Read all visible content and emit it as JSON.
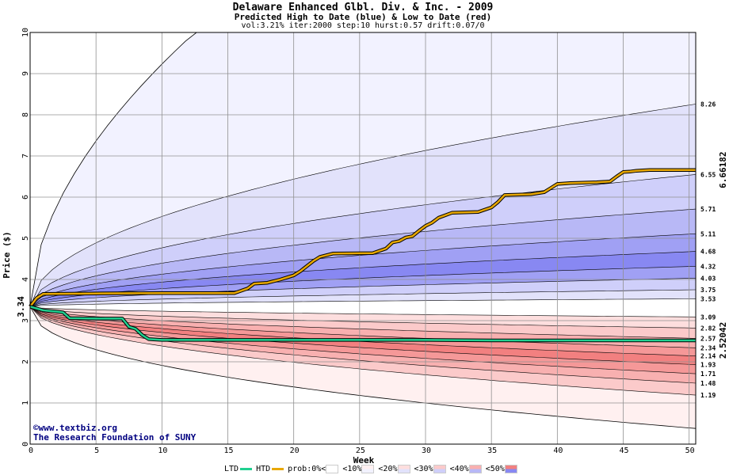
{
  "header": {
    "title": "Delaware Enhanced Glbl. Div. & Inc. - 2009",
    "subtitle": "Predicted High to Date (blue) &  Low to Date (red)",
    "params": "vol:3.21% iter:2000 step:10 hurst:0.57 drift:0.07/0"
  },
  "watermark": {
    "line1": "©www.textbiz.org",
    "line2": "The Research Foundation of SUNY"
  },
  "legend": {
    "ltd": "LTD",
    "htd": "HTD",
    "prob0": "prob:0%",
    "p10": "<10%",
    "p20": "<20%",
    "p30": "<30%",
    "p40": "<40%",
    "p50": "<50%",
    "less": "<"
  },
  "colors": {
    "htd": "#e8a800",
    "ltd": "#20d090",
    "start_label": "#007040",
    "end_htd_label": "#a07000",
    "end_ltd_label": "#009070",
    "blue_bands": [
      "#f2f2ff",
      "#e2e2fb",
      "#cfcffa",
      "#b8b8f6",
      "#a0a0f4",
      "#8888f2"
    ],
    "red_bands": [
      "#fff0f0",
      "#fddede",
      "#fbcaca",
      "#f8b0b0",
      "#f59898",
      "#f28080"
    ]
  },
  "chart_data": {
    "type": "line",
    "xlabel": "Week",
    "ylabel": "Price ($)",
    "xlim": [
      0,
      50.5
    ],
    "ylim": [
      0,
      10
    ],
    "xticks": [
      0,
      5,
      10,
      15,
      20,
      25,
      30,
      35,
      40,
      45,
      50
    ],
    "yticks": [
      0,
      1,
      2,
      3,
      4,
      5,
      6,
      7,
      8,
      9,
      10
    ],
    "grid": true,
    "start_price": 3.34,
    "start_label": "3.34",
    "high_quantiles_end": [
      8.26,
      6.55,
      5.71,
      5.11,
      4.68,
      4.32,
      4.03,
      3.75,
      3.53
    ],
    "low_quantiles_end": [
      3.09,
      2.82,
      2.57,
      2.34,
      2.14,
      1.93,
      1.71,
      1.48,
      1.19
    ],
    "right_labels": [
      "8.26",
      "6.55",
      "5.71",
      "5.11",
      "4.68",
      "4.32",
      "4.03",
      "3.75",
      "3.53",
      "3.09",
      "2.82",
      "2.57",
      "2.34",
      "2.14",
      "1.93",
      "1.71",
      "1.48",
      "1.19"
    ],
    "outer_high_end": 10.0,
    "outer_low_end": 0.38,
    "series": [
      {
        "name": "HTD",
        "x": [
          0,
          0.5,
          1,
          5,
          10,
          15.5,
          16.5,
          17,
          18,
          19,
          20,
          20.5,
          21.5,
          22,
          23,
          26,
          27,
          27.5,
          28,
          28.5,
          29,
          29.5,
          30,
          30.5,
          31,
          32,
          33,
          34,
          35,
          35.5,
          36,
          37,
          38,
          39,
          39.5,
          40,
          41,
          42,
          43,
          44,
          44.5,
          45,
          45.5,
          46,
          47,
          48,
          49,
          50.5
        ],
        "y": [
          3.34,
          3.55,
          3.65,
          3.66,
          3.67,
          3.67,
          3.78,
          3.9,
          3.92,
          4.0,
          4.1,
          4.2,
          4.45,
          4.55,
          4.63,
          4.64,
          4.75,
          4.9,
          4.93,
          5.02,
          5.05,
          5.18,
          5.3,
          5.38,
          5.5,
          5.62,
          5.63,
          5.64,
          5.75,
          5.88,
          6.05,
          6.06,
          6.07,
          6.12,
          6.22,
          6.32,
          6.34,
          6.35,
          6.36,
          6.38,
          6.5,
          6.61,
          6.62,
          6.64,
          6.66,
          6.66,
          6.66,
          6.66
        ]
      },
      {
        "name": "LTD",
        "x": [
          0,
          1,
          2,
          2.5,
          3,
          5,
          7,
          7.5,
          8,
          8.5,
          9,
          10,
          15,
          20,
          25,
          30,
          35,
          40,
          45,
          50.5
        ],
        "y": [
          3.34,
          3.25,
          3.22,
          3.2,
          3.06,
          3.05,
          3.05,
          2.85,
          2.8,
          2.65,
          2.55,
          2.53,
          2.53,
          2.53,
          2.53,
          2.53,
          2.52,
          2.52,
          2.52,
          2.52
        ]
      }
    ],
    "htd_end_label": "6.66182",
    "ltd_end_label": "2.52042"
  }
}
